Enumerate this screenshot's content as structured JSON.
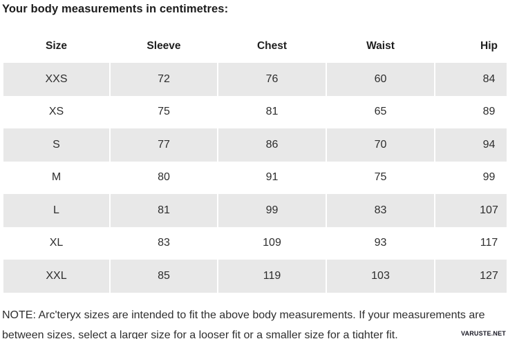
{
  "page": {
    "title": "Your body measurements in centimetres:",
    "note": "NOTE: Arc'teryx sizes are intended to fit the above body measurements. If your measurements are between sizes, select a larger size for a looser fit or a smaller size for a tighter fit.",
    "watermark": "VARUSTE.NET"
  },
  "chart_data": {
    "type": "table",
    "title": "Your body measurements in centimetres:",
    "columns": [
      "Size",
      "Sleeve",
      "Chest",
      "Waist",
      "Hip"
    ],
    "rows": [
      [
        "XXS",
        "72",
        "76",
        "60",
        "84"
      ],
      [
        "XS",
        "75",
        "81",
        "65",
        "89"
      ],
      [
        "S",
        "77",
        "86",
        "70",
        "94"
      ],
      [
        "M",
        "80",
        "91",
        "75",
        "99"
      ],
      [
        "L",
        "81",
        "99",
        "83",
        "107"
      ],
      [
        "XL",
        "83",
        "109",
        "93",
        "117"
      ],
      [
        "XXL",
        "85",
        "119",
        "103",
        "127"
      ]
    ],
    "units": "cm",
    "layout_hints": {
      "striped_rows": [
        0,
        2,
        4,
        6
      ],
      "stripe_color": "#e8e8e8",
      "header_background": "#ffffff",
      "cell_alignment": "center"
    }
  },
  "colors": {
    "row_stripe": "#e8e8e8",
    "body_text": "#2d2d2d",
    "title_text": "#1c1c1c",
    "watermark_text": "#171723",
    "background": "#ffffff"
  }
}
